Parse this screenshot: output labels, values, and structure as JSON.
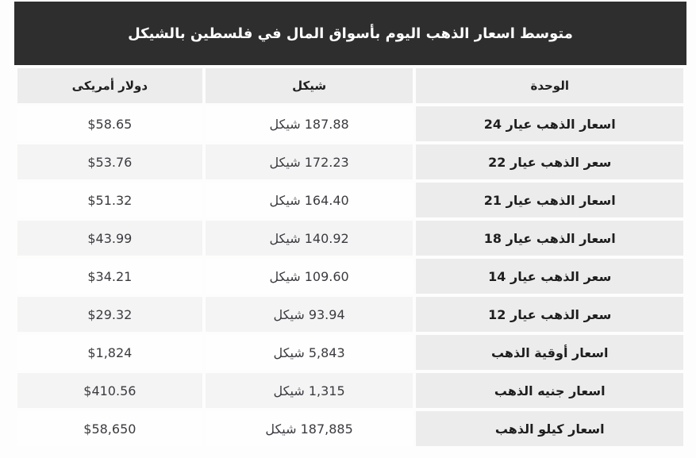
{
  "page": {
    "title": "متوسط اسعار الذهب اليوم بأسواق المال في فلسطين بالشيكل"
  },
  "table": {
    "headers": {
      "unit": "الوحدة",
      "shekel": "شيكل",
      "dollar": "دولار أمريكى"
    },
    "rows": [
      {
        "unit": "اسعار الذهب عيار 24",
        "shekel": "187.88 شيكل",
        "dollar": "$58.65"
      },
      {
        "unit": "سعر الذهب عيار 22",
        "shekel": "172.23 شيكل",
        "dollar": "$53.76"
      },
      {
        "unit": "اسعار الذهب عيار 21",
        "shekel": "164.40 شيكل",
        "dollar": "$51.32"
      },
      {
        "unit": "اسعار الذهب عيار 18",
        "shekel": "140.92 شيكل",
        "dollar": "$43.99"
      },
      {
        "unit": "سعر الذهب عيار 14",
        "shekel": "109.60 شيكل",
        "dollar": "$34.21"
      },
      {
        "unit": "سعر الذهب عيار 12",
        "shekel": "93.94 شيكل",
        "dollar": "$29.32"
      },
      {
        "unit": "اسعار أوقية الذهب",
        "shekel": "5,843 شيكل",
        "dollar": "$1,824"
      },
      {
        "unit": "اسعار جنيه الذهب",
        "shekel": "1,315 شيكل",
        "dollar": "$410.56"
      },
      {
        "unit": "اسعار كيلو الذهب",
        "shekel": "187,885 شيكل",
        "dollar": "$58,650"
      }
    ]
  },
  "colors": {
    "page_bg": "#fdfdfd",
    "title_bg": "#2e2e2e",
    "title_text": "#ffffff",
    "header_cell_bg": "#ececec",
    "unit_cell_bg": "#ececec",
    "row_bg": "#fefefe",
    "row_alt_bg": "#f4f4f5",
    "label_text": "#1e1e1e",
    "value_text": "#3b3b40"
  },
  "chart_data": {
    "type": "table",
    "title": "متوسط اسعار الذهب اليوم بأسواق المال في فلسطين بالشيكل",
    "columns": [
      "الوحدة",
      "شيكل",
      "دولار أمريكى"
    ],
    "rows": [
      [
        "اسعار الذهب عيار 24",
        "187.88 شيكل",
        "$58.65"
      ],
      [
        "سعر الذهب عيار 22",
        "172.23 شيكل",
        "$53.76"
      ],
      [
        "اسعار الذهب عيار 21",
        "164.40 شيكل",
        "$51.32"
      ],
      [
        "اسعار الذهب عيار 18",
        "140.92 شيكل",
        "$43.99"
      ],
      [
        "سعر الذهب عيار 14",
        "109.60 شيكل",
        "$34.21"
      ],
      [
        "سعر الذهب عيار 12",
        "93.94 شيكل",
        "$29.32"
      ],
      [
        "اسعار أوقية الذهب",
        "5,843 شيكل",
        "$1,824"
      ],
      [
        "اسعار جنيه الذهب",
        "1,315 شيكل",
        "$410.56"
      ],
      [
        "اسعار كيلو الذهب",
        "187,885 شيكل",
        "$58,650"
      ]
    ],
    "values": {
      "shekel": [
        187.88,
        172.23,
        164.4,
        140.92,
        109.6,
        93.94,
        5843,
        1315,
        187885
      ],
      "usd": [
        58.65,
        53.76,
        51.32,
        43.99,
        34.21,
        29.32,
        1824,
        410.56,
        58650
      ]
    },
    "layout_hints": {
      "direction": "rtl",
      "unit_column_position": "right",
      "row_striping": true
    }
  }
}
